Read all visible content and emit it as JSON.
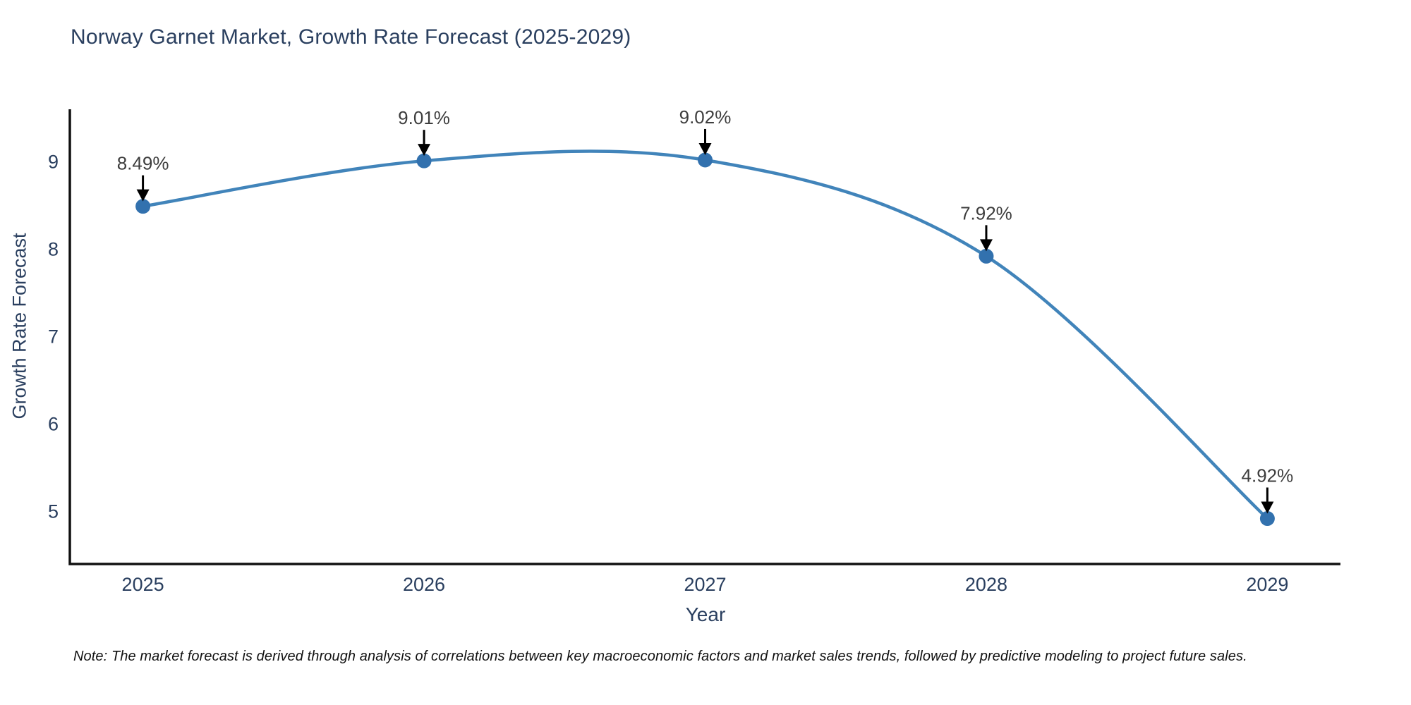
{
  "page": {
    "title": "Norway Garnet Market, Growth Rate Forecast (2025-2029)",
    "note": "Note: The market forecast is derived through analysis of correlations between key macroeconomic factors and market sales trends, followed by predictive modeling to project future sales."
  },
  "chart_data": {
    "type": "line",
    "title": "Norway Garnet Market, Growth Rate Forecast (2025-2029)",
    "xlabel": "Year",
    "ylabel": "Growth Rate Forecast",
    "x": [
      2025,
      2026,
      2027,
      2028,
      2029
    ],
    "x_tick_labels": [
      "2025",
      "2026",
      "2027",
      "2028",
      "2029"
    ],
    "series": [
      {
        "name": "Growth Rate Forecast",
        "values": [
          8.49,
          9.01,
          9.02,
          7.92,
          4.92
        ],
        "point_labels": [
          "8.49%",
          "9.01%",
          "9.02%",
          "7.92%",
          "4.92%"
        ]
      }
    ],
    "y_ticks": [
      5,
      6,
      7,
      8,
      9
    ],
    "ylim": [
      4.4,
      9.6
    ],
    "xlim": [
      2024.74,
      2029.26
    ],
    "grid": false,
    "legend_position": "none",
    "line_shape": "spline",
    "annotations_have_arrows": true,
    "colors": {
      "line": "#4184ba",
      "marker": "#3271ae",
      "axis": "#111111",
      "tick_label": "#2a3f5f",
      "annotation_text": "#3d3d3d",
      "annotation_arrow": "#000000",
      "background": "#ffffff"
    }
  }
}
